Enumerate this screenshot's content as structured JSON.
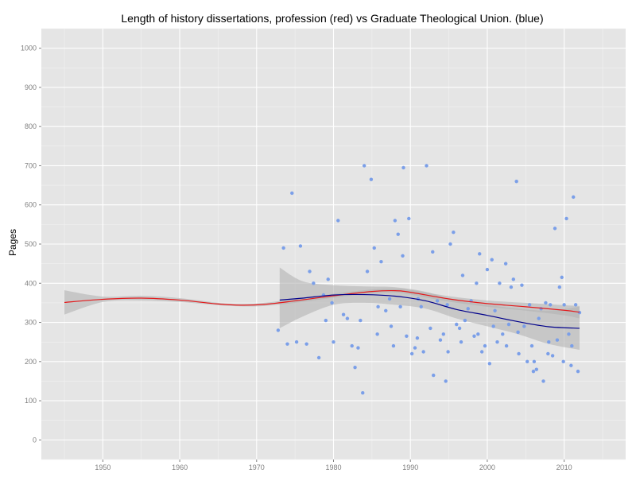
{
  "chart_data": {
    "type": "scatter",
    "title": "Length of history dissertations, profession (red) vs Graduate Theological Union. (blue)",
    "xlabel": "",
    "ylabel": "Pages",
    "xlim": [
      1942,
      2018
    ],
    "ylim": [
      -50,
      1050
    ],
    "x_ticks": [
      1950,
      1960,
      1970,
      1980,
      1990,
      2000,
      2010
    ],
    "y_ticks": [
      0,
      100,
      200,
      300,
      400,
      500,
      600,
      700,
      800,
      900,
      1000
    ],
    "grid": true,
    "colors": {
      "panel_bg": "#e5e5e5",
      "grid_major": "#ffffff",
      "grid_minor": "#f2f2f2",
      "points": "#7b9fe8",
      "ribbon": "#b2b2b2",
      "profession_line": "#e31a1c",
      "gtu_line": "#00008b"
    },
    "series": [
      {
        "kind": "points",
        "x": [
          1972.8,
          1973.5,
          1974.0,
          1974.6,
          1975.2,
          1975.7,
          1976.5,
          1976.9,
          1977.4,
          1978.1,
          1978.7,
          1979.0,
          1979.3,
          1979.8,
          1980.6,
          1981.3,
          1981.8,
          1982.4,
          1982.8,
          1983.2,
          1983.8,
          1984.0,
          1984.4,
          1984.9,
          1985.3,
          1985.7,
          1986.2,
          1986.8,
          1987.3,
          1987.8,
          1988.0,
          1988.4,
          1988.7,
          1989.1,
          1989.5,
          1989.8,
          1990.2,
          1990.6,
          1991.0,
          1991.4,
          1991.7,
          1992.1,
          1992.6,
          1993.0,
          1993.5,
          1993.9,
          1994.3,
          1994.6,
          1994.8,
          1995.2,
          1995.6,
          1996.0,
          1996.4,
          1996.8,
          1997.1,
          1997.5,
          1997.9,
          1998.3,
          1998.6,
          1999.0,
          1999.3,
          1999.7,
          2000.0,
          2000.3,
          2000.6,
          2001.0,
          2001.3,
          2001.6,
          2002.0,
          2002.4,
          2002.8,
          2003.1,
          2003.4,
          2003.8,
          2004.1,
          2004.5,
          2004.8,
          2005.2,
          2005.5,
          2005.8,
          2006.1,
          2006.4,
          2006.7,
          2007.0,
          2007.3,
          2007.6,
          2007.9,
          2008.2,
          2008.5,
          2008.8,
          2009.1,
          2009.4,
          2009.7,
          2010.0,
          2010.3,
          2010.6,
          2010.9,
          2011.2,
          2011.5,
          2011.8,
          2012.0,
          2011.0,
          2009.9,
          2008.0,
          2006.0,
          2004.0,
          2002.5,
          2000.8,
          1998.8,
          1996.6,
          1994.9,
          1992.9,
          1990.9,
          1989.0,
          1987.5,
          1985.8,
          1983.5,
          1980.0
        ],
        "y": [
          280,
          490,
          245,
          630,
          250,
          495,
          245,
          430,
          400,
          210,
          370,
          305,
          410,
          350,
          560,
          320,
          310,
          240,
          185,
          235,
          120,
          700,
          430,
          665,
          490,
          270,
          455,
          330,
          360,
          240,
          560,
          525,
          340,
          695,
          265,
          565,
          220,
          235,
          360,
          340,
          225,
          700,
          285,
          165,
          355,
          255,
          270,
          150,
          345,
          500,
          530,
          295,
          285,
          420,
          305,
          335,
          355,
          265,
          400,
          475,
          225,
          240,
          435,
          195,
          460,
          330,
          250,
          400,
          270,
          450,
          295,
          390,
          410,
          660,
          220,
          395,
          290,
          200,
          345,
          240,
          200,
          180,
          310,
          335,
          150,
          350,
          220,
          345,
          215,
          540,
          255,
          390,
          415,
          345,
          565,
          270,
          190,
          620,
          345,
          175,
          325,
          240,
          200,
          250,
          175,
          275,
          240,
          290,
          270,
          250,
          225,
          480,
          260,
          470,
          290,
          340,
          305,
          250
        ]
      },
      {
        "kind": "smooth",
        "name": "profession (red)",
        "x": [
          1945,
          1950,
          1955,
          1960,
          1965,
          1968,
          1971,
          1975,
          1980,
          1985,
          1988,
          1990,
          1995,
          2000,
          2005,
          2010,
          2012
        ],
        "y": [
          351,
          359,
          362,
          357,
          347,
          344,
          346,
          355,
          368,
          379,
          381,
          377,
          360,
          348,
          340,
          331,
          326
        ],
        "ci_low": [
          320,
          352,
          356,
          352,
          344,
          341,
          342,
          350,
          363,
          374,
          376,
          371,
          353,
          340,
          330,
          318,
          310
        ],
        "ci_high": [
          382,
          366,
          368,
          362,
          350,
          347,
          350,
          360,
          373,
          384,
          386,
          383,
          367,
          356,
          350,
          344,
          342
        ]
      },
      {
        "kind": "smooth",
        "name": "Graduate Theological Union. (blue)",
        "x": [
          1973,
          1976,
          1980,
          1984,
          1988,
          1992,
          1996,
          2000,
          2004,
          2008,
          2012
        ],
        "y": [
          357,
          362,
          370,
          371,
          367,
          355,
          333,
          318,
          302,
          289,
          285
        ],
        "ci_low": [
          285,
          315,
          345,
          350,
          345,
          335,
          310,
          290,
          270,
          245,
          230
        ],
        "ci_high": [
          440,
          405,
          395,
          392,
          390,
          378,
          356,
          345,
          335,
          330,
          340
        ]
      }
    ]
  }
}
